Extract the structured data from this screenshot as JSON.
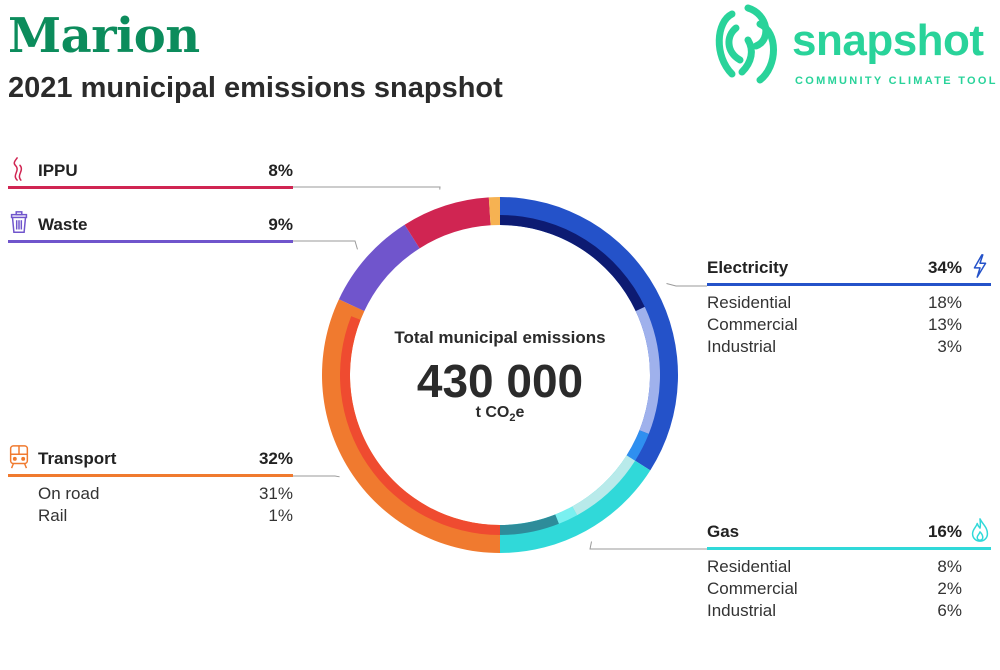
{
  "header": {
    "city": "Marion",
    "subtitle": "2021 municipal emissions snapshot"
  },
  "logo": {
    "wordmark": "snapshot",
    "tagline": "COMMUNITY CLIMATE TOOL",
    "color": "#29d39a"
  },
  "center": {
    "title": "Total municipal emissions",
    "value": "430 000",
    "unit_prefix": "t CO",
    "unit_sub": "2",
    "unit_suffix": "e"
  },
  "chart_data": {
    "type": "pie",
    "title": "2021 municipal emissions snapshot",
    "total": 430000,
    "unit": "t CO2e",
    "categories": [
      {
        "name": "Electricity",
        "percent": 34,
        "color": "#2452c9",
        "icon": "lightning-icon",
        "subsectors": [
          {
            "name": "Residential",
            "percent": 18,
            "color": "#0d1b72"
          },
          {
            "name": "Commercial",
            "percent": 13,
            "color": "#9fb1ec"
          },
          {
            "name": "Industrial",
            "percent": 3,
            "color": "#2f8ff0"
          }
        ]
      },
      {
        "name": "Gas",
        "percent": 16,
        "color": "#30d9d9",
        "icon": "flame-icon",
        "subsectors": [
          {
            "name": "Residential",
            "percent": 8,
            "color": "#b8eaea"
          },
          {
            "name": "Commercial",
            "percent": 2,
            "color": "#7af0f0"
          },
          {
            "name": "Industrial",
            "percent": 6,
            "color": "#2e8c9a"
          }
        ]
      },
      {
        "name": "Transport",
        "percent": 32,
        "color": "#f07a2f",
        "icon": "train-icon",
        "subsectors": [
          {
            "name": "On road",
            "percent": 31,
            "color": "#ef4b30"
          },
          {
            "name": "Rail",
            "percent": 1,
            "color": "#f07a2f"
          }
        ]
      },
      {
        "name": "Waste",
        "percent": 9,
        "color": "#7055cc",
        "icon": "trash-icon",
        "subsectors": []
      },
      {
        "name": "IPPU",
        "percent": 8,
        "color": "#d02552",
        "icon": "smoke-icon",
        "subsectors": []
      },
      {
        "name": "",
        "percent": 1,
        "color": "#f6b252",
        "icon": "",
        "subsectors": []
      }
    ]
  }
}
